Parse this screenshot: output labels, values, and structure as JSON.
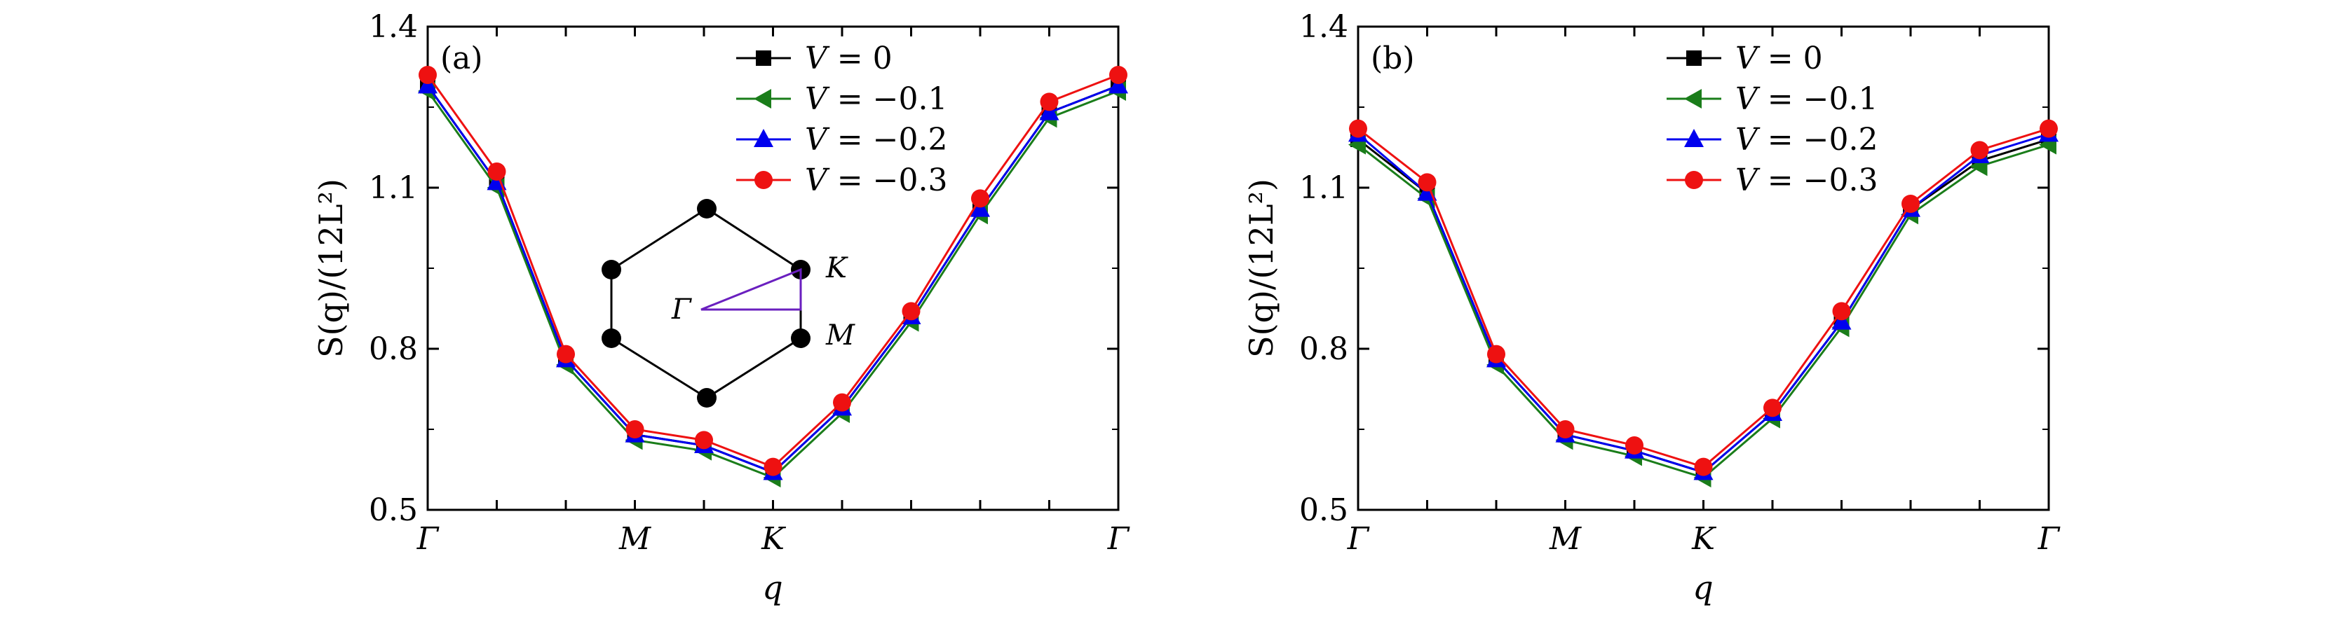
{
  "chart_data": [
    {
      "type": "line",
      "panel_label": "(a)",
      "ylabel": "S(q)/(12L²)",
      "xlabel": "q",
      "ylim": [
        0.5,
        1.4
      ],
      "yticks": [
        "0.5",
        "0.8",
        "1.1",
        "1.4"
      ],
      "x": [
        0,
        1,
        2,
        3,
        4,
        5,
        6,
        7,
        8,
        9,
        10
      ],
      "x_tick_labels": [
        {
          "x": 0,
          "label": "Γ"
        },
        {
          "x": 3,
          "label": "M"
        },
        {
          "x": 5,
          "label": "K"
        },
        {
          "x": 10,
          "label": "Γ"
        }
      ],
      "series": [
        {
          "name": "V = 0",
          "legend_prefix": "V",
          "legend_value": "0",
          "color": "#000000",
          "marker": "square",
          "values": [
            1.29,
            1.11,
            0.78,
            0.64,
            0.62,
            0.57,
            0.69,
            0.86,
            1.06,
            1.24,
            1.29
          ]
        },
        {
          "name": "V = −0.1",
          "legend_prefix": "V",
          "legend_value": "−0.1",
          "color": "#1a7d1a",
          "marker": "triangle-left",
          "values": [
            1.28,
            1.1,
            0.77,
            0.63,
            0.61,
            0.56,
            0.68,
            0.85,
            1.05,
            1.23,
            1.28
          ]
        },
        {
          "name": "V = −0.2",
          "legend_prefix": "V",
          "legend_value": "−0.2",
          "color": "#0000ee",
          "marker": "triangle-up",
          "values": [
            1.29,
            1.11,
            0.78,
            0.64,
            0.62,
            0.57,
            0.69,
            0.86,
            1.06,
            1.24,
            1.29
          ]
        },
        {
          "name": "V = −0.3",
          "legend_prefix": "V",
          "legend_value": "−0.3",
          "color": "#ee1111",
          "marker": "circle",
          "values": [
            1.31,
            1.13,
            0.79,
            0.65,
            0.63,
            0.58,
            0.7,
            0.87,
            1.08,
            1.26,
            1.31
          ]
        }
      ],
      "legend_position": "top-center",
      "inset": {
        "description": "hexagonal Brillouin zone with high-symmetry path",
        "labels": {
          "gamma": "Γ",
          "k": "K",
          "m": "M"
        },
        "path_color": "#6a1fbf"
      }
    },
    {
      "type": "line",
      "panel_label": "(b)",
      "ylabel": "S(q)/(12L²)",
      "xlabel": "q",
      "ylim": [
        0.5,
        1.4
      ],
      "yticks": [
        "0.5",
        "0.8",
        "1.1",
        "1.4"
      ],
      "x": [
        0,
        1,
        2,
        3,
        4,
        5,
        6,
        7,
        8,
        9,
        10
      ],
      "x_tick_labels": [
        {
          "x": 0,
          "label": "Γ"
        },
        {
          "x": 3,
          "label": "M"
        },
        {
          "x": 5,
          "label": "K"
        },
        {
          "x": 10,
          "label": "Γ"
        }
      ],
      "series": [
        {
          "name": "V = 0",
          "legend_prefix": "V",
          "legend_value": "0",
          "color": "#000000",
          "marker": "square",
          "values": [
            1.19,
            1.09,
            0.78,
            0.64,
            0.61,
            0.57,
            0.68,
            0.85,
            1.06,
            1.15,
            1.19
          ]
        },
        {
          "name": "V = −0.1",
          "legend_prefix": "V",
          "legend_value": "−0.1",
          "color": "#1a7d1a",
          "marker": "triangle-left",
          "values": [
            1.18,
            1.08,
            0.77,
            0.63,
            0.6,
            0.56,
            0.67,
            0.84,
            1.05,
            1.14,
            1.18
          ]
        },
        {
          "name": "V = −0.2",
          "legend_prefix": "V",
          "legend_value": "−0.2",
          "color": "#0000ee",
          "marker": "triangle-up",
          "values": [
            1.2,
            1.09,
            0.78,
            0.64,
            0.61,
            0.57,
            0.68,
            0.85,
            1.06,
            1.16,
            1.2
          ]
        },
        {
          "name": "V = −0.3",
          "legend_prefix": "V",
          "legend_value": "−0.3",
          "color": "#ee1111",
          "marker": "circle",
          "values": [
            1.21,
            1.11,
            0.79,
            0.65,
            0.62,
            0.58,
            0.69,
            0.87,
            1.07,
            1.17,
            1.21
          ]
        }
      ],
      "legend_position": "top-center"
    }
  ]
}
